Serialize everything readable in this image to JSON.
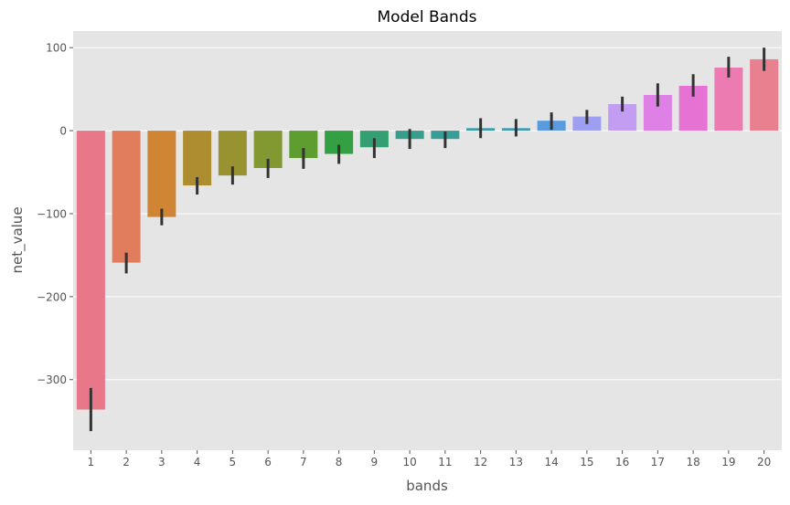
{
  "chart_data": {
    "type": "bar",
    "title": "Model Bands",
    "xlabel": "bands",
    "ylabel": "net_value",
    "categories": [
      "1",
      "2",
      "3",
      "4",
      "5",
      "6",
      "7",
      "8",
      "9",
      "10",
      "11",
      "12",
      "13",
      "14",
      "15",
      "16",
      "17",
      "18",
      "19",
      "20"
    ],
    "values": [
      -336,
      -159,
      -104,
      -66,
      -54,
      -45,
      -33,
      -28,
      -20,
      -10,
      -10,
      3,
      3,
      12,
      17,
      32,
      43,
      54,
      76,
      86
    ],
    "error_low": [
      -362,
      -172,
      -114,
      -77,
      -65,
      -57,
      -46,
      -40,
      -33,
      -22,
      -21,
      -9,
      -7,
      1,
      8,
      23,
      29,
      41,
      64,
      72
    ],
    "error_high": [
      -310,
      -147,
      -94,
      -56,
      -43,
      -34,
      -21,
      -17,
      -9,
      2,
      -1,
      15,
      14,
      22,
      25,
      41,
      57,
      68,
      89,
      100
    ],
    "colors": [
      "#e8778a",
      "#e17d5c",
      "#cf8533",
      "#ad8d2f",
      "#999230",
      "#829830",
      "#5e9e31",
      "#33a043",
      "#34a072",
      "#369e8b",
      "#389d99",
      "#3a9ca6",
      "#3c9ab7",
      "#5a9be0",
      "#9e9ff0",
      "#c39df2",
      "#df80e6",
      "#e672d3",
      "#eb7bb0",
      "#e8808f"
    ],
    "ylim": [
      -385,
      120
    ],
    "yticks": [
      100,
      0,
      -100,
      -200,
      -300
    ],
    "ytick_labels": [
      "100",
      "0",
      "−100",
      "−200",
      "−300"
    ],
    "grid": true,
    "background": "#e5e5e5",
    "error_color": "#333333"
  }
}
